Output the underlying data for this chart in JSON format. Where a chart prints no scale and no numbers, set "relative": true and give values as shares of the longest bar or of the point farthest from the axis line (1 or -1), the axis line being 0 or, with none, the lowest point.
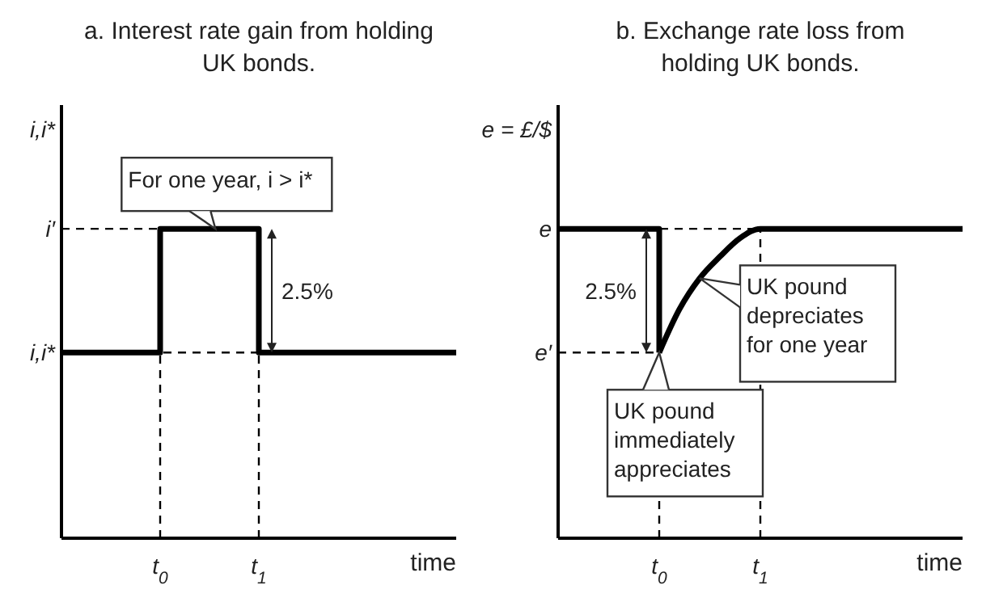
{
  "chart_data": [
    {
      "type": "step",
      "title": "a. Interest rate gain from holding UK bonds.",
      "ylabel": "i,i*",
      "xlabel": "time",
      "relative": true,
      "marker": "none",
      "categories": [
        null,
        null,
        null,
        null,
        null,
        "t$_{0}$",
        null,
        null,
        null,
        null,
        "t$_{1}$",
        null,
        null,
        null,
        null,
        null,
        null,
        null,
        null,
        null,
        null
      ],
      "values": [
        0.6,
        0.6,
        0.6,
        0.6,
        0.6,
        1,
        1,
        1,
        1,
        1,
        0.6,
        0.6,
        0.6,
        0.6,
        0.6,
        0.6,
        0.6,
        0.6,
        0.6,
        0.6,
        0.6
      ],
      "color": "#000000",
      "ref_lines": [
        {
          "axis": "y",
          "value": 1,
          "line_style": "dashed"
        },
        {
          "axis": "y",
          "value": 0.6,
          "line_style": "dashed"
        },
        {
          "axis": "x",
          "value": "t$_{0}$",
          "line_style": "dashed"
        },
        {
          "axis": "x",
          "value": "t$_{1}$",
          "line_style": "dashed"
        }
      ],
      "annotations": [
        "i′",
        "i,i*",
        {
          "text": "For one year, i > i*",
          "y": 1
        },
        {
          "text": "2.5%",
          "x": "t$_{1}$",
          "y": 0.8
        }
      ]
    },
    {
      "type": "line",
      "title": "b. Exchange rate loss from holding UK bonds.",
      "ylabel": "e = £/$",
      "xlabel": "time",
      "relative": true,
      "marker": "none",
      "categories": [
        null,
        null,
        null,
        null,
        null,
        "t$_{0}$",
        null,
        null,
        null,
        null,
        "t$_{1}$",
        null,
        null,
        null,
        null,
        null,
        null,
        null,
        null,
        null,
        null
      ],
      "series": [
        {
          "type": "step",
          "color": "#000000",
          "values": [
            1,
            1,
            1,
            1,
            1,
            0.6,
            null,
            null,
            null,
            null,
            null,
            null,
            null,
            null,
            null,
            null,
            null,
            null,
            null,
            null,
            null
          ]
        },
        {
          "color": "#000000",
          "values": [
            null,
            null,
            null,
            null,
            null,
            0.6,
            0.74,
            0.84,
            0.91,
            0.97,
            1,
            1,
            1,
            1,
            1,
            1,
            1,
            1,
            1,
            1,
            1
          ]
        }
      ],
      "ref_lines": [
        {
          "axis": "y",
          "value": 1,
          "line_style": "dashed"
        },
        {
          "axis": "y",
          "value": 0.6,
          "line_style": "dashed"
        },
        {
          "axis": "x",
          "value": "t$_{0}$",
          "line_style": "dashed"
        },
        {
          "axis": "x",
          "value": "t$_{1}$",
          "line_style": "dashed"
        }
      ],
      "annotations": [
        "e",
        "e′",
        {
          "text": "2.5%",
          "x": "t$_{0}$",
          "y": 0.8
        },
        "UK pound depreciates for one year",
        {
          "text": "UK pound immediately appreciates",
          "x": "t$_{0}$",
          "y": 0.6
        }
      ]
    }
  ]
}
